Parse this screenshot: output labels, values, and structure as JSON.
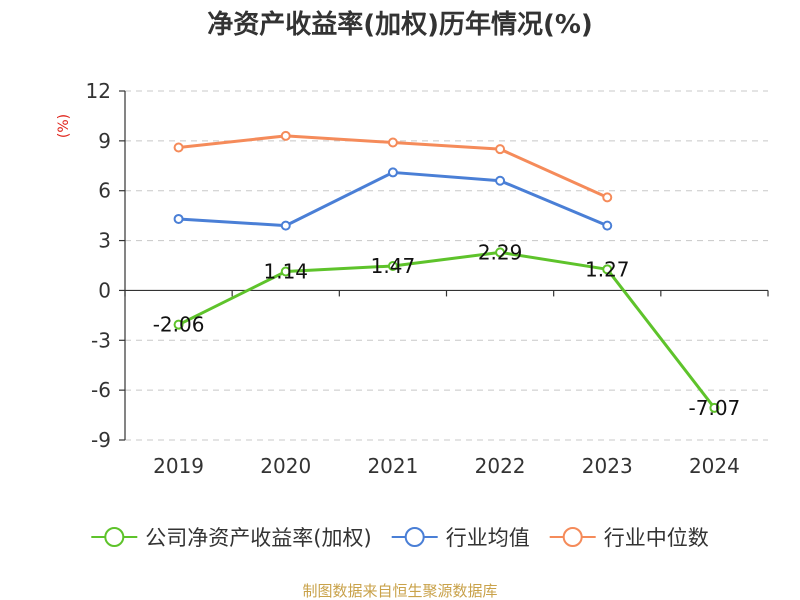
{
  "chart_data": {
    "type": "line",
    "title": "净资产收益率(加权)历年情况(%)",
    "ylabel": "(%)",
    "xlabel": "",
    "categories": [
      "2019",
      "2020",
      "2021",
      "2022",
      "2023",
      "2024"
    ],
    "ylim": [
      -9,
      12
    ],
    "yticks": [
      12,
      9,
      6,
      3,
      0,
      -3,
      -6,
      -9
    ],
    "grid": true,
    "legend_position": "bottom",
    "series": [
      {
        "name": "公司净资产收益率(加权)",
        "color": "#5ec32b",
        "values": [
          -2.06,
          1.14,
          1.47,
          2.29,
          1.27,
          -7.07
        ],
        "labels": [
          "-2.06",
          "1.14",
          "1.47",
          "2.29",
          "1.27",
          "-7.07"
        ]
      },
      {
        "name": "行业均值",
        "color": "#4a7fd6",
        "values": [
          4.3,
          3.9,
          7.1,
          6.6,
          3.9,
          null
        ]
      },
      {
        "name": "行业中位数",
        "color": "#f58b5a",
        "values": [
          8.6,
          9.3,
          8.9,
          8.5,
          5.6,
          null
        ]
      }
    ],
    "source": "制图数据来自恒生聚源数据库"
  }
}
